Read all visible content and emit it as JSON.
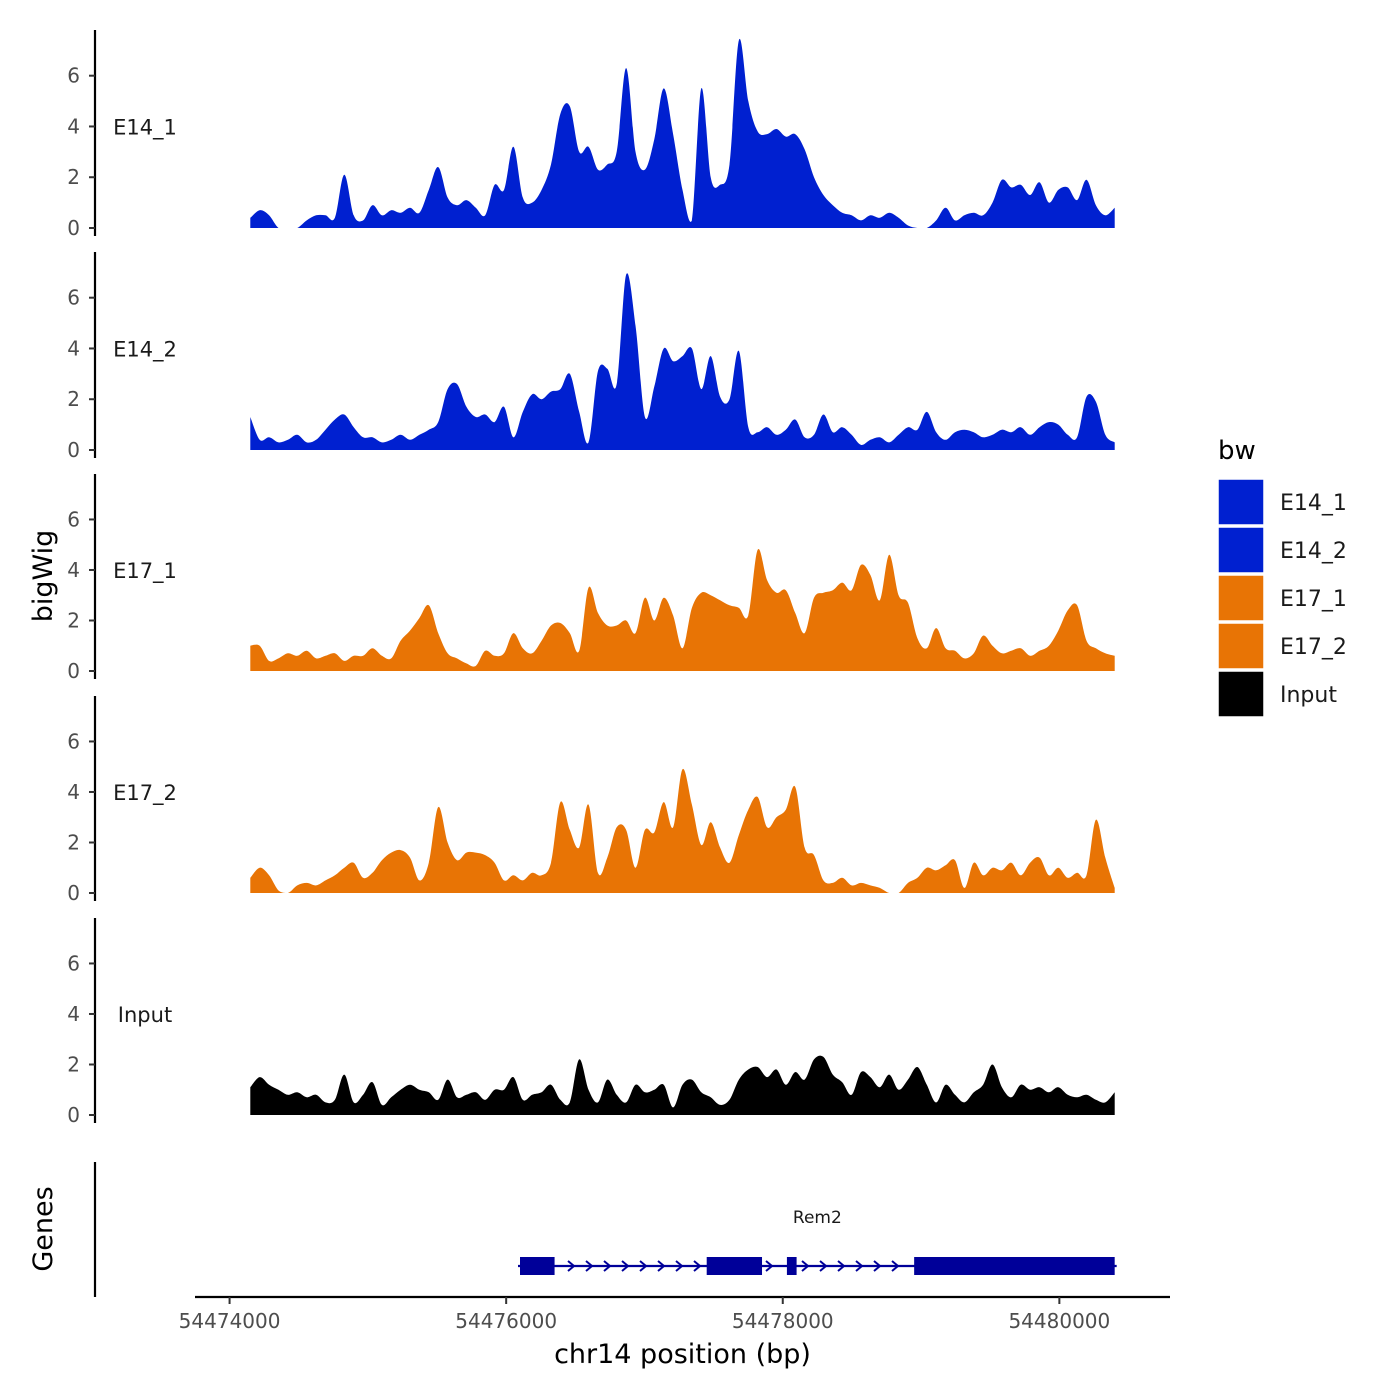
{
  "chart_data": {
    "type": "area",
    "title": "",
    "chromosome": "chr14",
    "xlabel": "chr14 position (bp)",
    "ylabel": "bigWig",
    "genes_track_label": "Genes",
    "xlim": [
      54473750,
      54480800
    ],
    "ylim": [
      0,
      7.8
    ],
    "x_ticks": [
      54474000,
      54476000,
      54478000,
      54480000
    ],
    "x_tick_labels": [
      "54474000",
      "54476000",
      "54478000",
      "54480000"
    ],
    "y_ticks": [
      0,
      2,
      4,
      6
    ],
    "y_tick_labels": [
      "0",
      "2",
      "4",
      "6"
    ],
    "x_range": [
      54474150,
      54480400
    ],
    "legend": {
      "title": "bw",
      "entries": [
        {
          "label": "E14_1",
          "color": "#0020D0"
        },
        {
          "label": "E14_2",
          "color": "#0020D0"
        },
        {
          "label": "E17_1",
          "color": "#E87405"
        },
        {
          "label": "E17_2",
          "color": "#E87405"
        },
        {
          "label": "Input",
          "color": "#000000"
        }
      ]
    },
    "series": [
      {
        "name": "E14_1",
        "color": "#0020D0",
        "values": [
          0.4,
          0.7,
          0.5,
          0,
          0,
          0,
          0.3,
          0.5,
          0.5,
          0.4,
          2.1,
          0.5,
          0.3,
          0.9,
          0.5,
          0.7,
          0.6,
          0.8,
          0.6,
          1.5,
          2.4,
          1.2,
          0.9,
          1.1,
          0.8,
          0.5,
          1.7,
          1.5,
          3.2,
          1.2,
          1.0,
          1.5,
          2.5,
          4.5,
          4.8,
          3.0,
          3.2,
          2.3,
          2.5,
          3.0,
          6.3,
          3.0,
          2.3,
          3.5,
          5.5,
          3.7,
          1.5,
          0.3,
          5.5,
          2.0,
          1.7,
          2.5,
          7.4,
          5.0,
          3.8,
          3.7,
          3.9,
          3.6,
          3.7,
          3.1,
          2.0,
          1.3,
          0.9,
          0.6,
          0.5,
          0.3,
          0.5,
          0.4,
          0.6,
          0.4,
          0.1,
          0,
          0,
          0.3,
          0.8,
          0.3,
          0.5,
          0.6,
          0.5,
          1.0,
          1.9,
          1.6,
          1.7,
          1.3,
          1.8,
          1.0,
          1.5,
          1.6,
          1.1,
          1.9,
          0.9,
          0.5,
          0.8
        ]
      },
      {
        "name": "E14_2",
        "color": "#0020D0",
        "values": [
          1.3,
          0.4,
          0.5,
          0.3,
          0.4,
          0.6,
          0.3,
          0.4,
          0.8,
          1.2,
          1.4,
          0.9,
          0.5,
          0.5,
          0.3,
          0.4,
          0.6,
          0.4,
          0.6,
          0.8,
          1.1,
          2.4,
          2.6,
          1.7,
          1.3,
          1.4,
          1.1,
          1.7,
          0.5,
          1.5,
          2.2,
          2.0,
          2.3,
          2.4,
          3.0,
          1.5,
          0.3,
          3.1,
          3.2,
          2.6,
          6.9,
          4.9,
          1.3,
          2.5,
          4.0,
          3.5,
          3.7,
          4.0,
          2.4,
          3.7,
          2.1,
          2.0,
          3.9,
          0.9,
          0.7,
          0.9,
          0.6,
          0.8,
          1.2,
          0.5,
          0.6,
          1.4,
          0.7,
          0.9,
          0.6,
          0.2,
          0.4,
          0.5,
          0.3,
          0.6,
          0.9,
          0.8,
          1.5,
          0.7,
          0.4,
          0.7,
          0.8,
          0.7,
          0.5,
          0.6,
          0.8,
          0.7,
          0.9,
          0.6,
          0.9,
          1.1,
          1.0,
          0.6,
          0.5,
          2.1,
          1.9,
          0.6,
          0.3
        ]
      },
      {
        "name": "E17_1",
        "color": "#E87405",
        "values": [
          1.0,
          1.0,
          0.4,
          0.5,
          0.7,
          0.6,
          0.8,
          0.5,
          0.6,
          0.7,
          0.4,
          0.6,
          0.6,
          0.9,
          0.6,
          0.5,
          1.2,
          1.6,
          2.1,
          2.6,
          1.5,
          0.7,
          0.5,
          0.3,
          0.2,
          0.8,
          0.6,
          0.7,
          1.5,
          0.9,
          0.7,
          1.2,
          1.8,
          1.9,
          1.5,
          0.8,
          3.3,
          2.3,
          1.8,
          1.8,
          2.0,
          1.5,
          2.9,
          2.0,
          2.9,
          2.2,
          0.9,
          2.5,
          3.1,
          3.0,
          2.8,
          2.6,
          2.5,
          2.2,
          4.8,
          3.6,
          3.1,
          3.2,
          2.3,
          1.5,
          2.9,
          3.1,
          3.2,
          3.5,
          3.2,
          4.2,
          3.8,
          2.8,
          4.6,
          3.0,
          2.7,
          1.3,
          0.9,
          1.7,
          0.9,
          0.8,
          0.5,
          0.7,
          1.4,
          1.0,
          0.7,
          0.8,
          0.9,
          0.6,
          0.8,
          1.0,
          1.6,
          2.4,
          2.6,
          1.2,
          0.9,
          0.7,
          0.6
        ]
      },
      {
        "name": "E17_2",
        "color": "#E87405",
        "values": [
          0.6,
          1.0,
          0.7,
          0.1,
          0,
          0.3,
          0.4,
          0.3,
          0.5,
          0.7,
          1.0,
          1.2,
          0.6,
          0.8,
          1.3,
          1.6,
          1.7,
          1.4,
          0.5,
          1.2,
          3.4,
          2.0,
          1.3,
          1.6,
          1.6,
          1.5,
          1.2,
          0.5,
          0.7,
          0.5,
          0.8,
          0.7,
          1.2,
          3.6,
          2.5,
          1.8,
          3.5,
          0.8,
          1.4,
          2.6,
          2.5,
          1.0,
          2.5,
          2.4,
          3.6,
          2.6,
          4.9,
          3.5,
          1.9,
          2.8,
          1.8,
          1.2,
          2.3,
          3.3,
          3.8,
          2.6,
          3.0,
          3.3,
          4.2,
          1.8,
          1.5,
          0.5,
          0.4,
          0.6,
          0.3,
          0.4,
          0.3,
          0.2,
          0,
          0,
          0.4,
          0.6,
          1.0,
          0.9,
          1.1,
          1.3,
          0.2,
          1.2,
          0.7,
          1.0,
          0.9,
          1.2,
          0.7,
          1.2,
          1.4,
          0.7,
          1.0,
          0.6,
          0.8,
          0.7,
          2.9,
          1.4,
          0.2
        ]
      },
      {
        "name": "Input",
        "color": "#000000",
        "values": [
          1.1,
          1.5,
          1.2,
          1.0,
          0.8,
          0.9,
          0.7,
          0.8,
          0.5,
          0.6,
          1.6,
          0.5,
          0.8,
          1.3,
          0.4,
          0.7,
          1.0,
          1.2,
          1.0,
          0.9,
          0.6,
          1.4,
          0.7,
          0.8,
          0.9,
          0.6,
          1.0,
          1.0,
          1.5,
          0.6,
          0.8,
          0.9,
          1.2,
          0.6,
          0.5,
          2.2,
          1.0,
          0.5,
          1.4,
          0.8,
          0.5,
          1.2,
          0.9,
          1.0,
          1.2,
          0.3,
          1.2,
          1.4,
          0.9,
          0.7,
          0.4,
          0.6,
          1.4,
          1.8,
          1.9,
          1.5,
          1.8,
          1.2,
          1.7,
          1.4,
          2.2,
          2.3,
          1.6,
          1.3,
          0.8,
          1.7,
          1.5,
          1.1,
          1.6,
          1.0,
          1.4,
          1.9,
          1.2,
          0.5,
          1.2,
          0.8,
          0.5,
          0.9,
          1.2,
          2.0,
          1.1,
          0.7,
          1.2,
          1.0,
          1.1,
          0.9,
          1.1,
          0.8,
          0.7,
          0.8,
          0.6,
          0.5,
          0.9
        ]
      }
    ],
    "gene_track": {
      "gene_name": "Rem2",
      "start": 54476100,
      "end": 54480400,
      "strand": "+",
      "color": "#000099",
      "exons": [
        [
          54476100,
          54476350
        ],
        [
          54477450,
          54477850
        ],
        [
          54478030,
          54478100
        ],
        [
          54478950,
          54480400
        ]
      ]
    }
  }
}
